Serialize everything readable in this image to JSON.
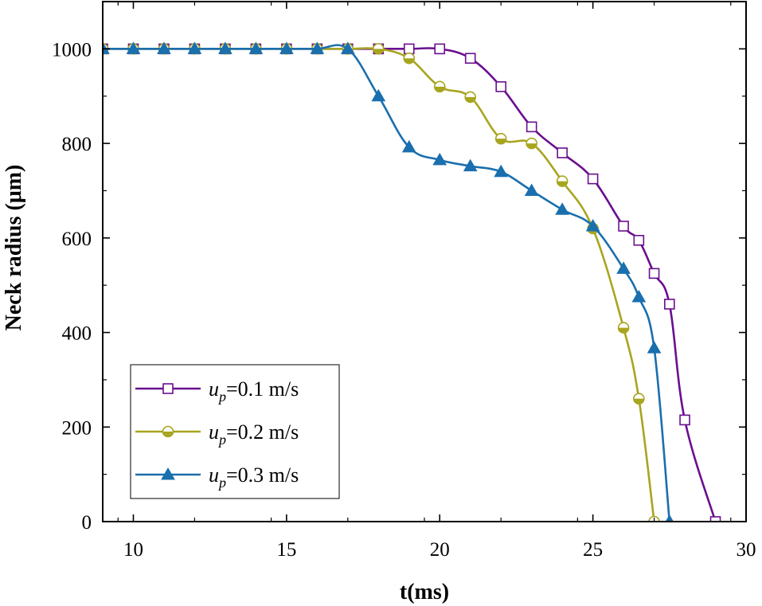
{
  "chart_data": {
    "type": "line",
    "xlabel": "t(ms)",
    "ylabel": "Neck radius (μm)",
    "xlim": [
      9,
      30
    ],
    "ylim": [
      0,
      1100
    ],
    "xticks": [
      10,
      15,
      20,
      25,
      30
    ],
    "yticks": [
      0,
      200,
      400,
      600,
      800,
      1000
    ],
    "grid": false,
    "legend_position": "bottom-left",
    "series": [
      {
        "var": "u",
        "sub": "p",
        "value_text": "=0.1 m/s",
        "color": "#6a0f8e",
        "marker": "open-square",
        "x": [
          9,
          10,
          11,
          12,
          13,
          14,
          15,
          16,
          17,
          18,
          19,
          20,
          21,
          22,
          23,
          24,
          25,
          26,
          26.5,
          27,
          27.5,
          28,
          29
        ],
        "y": [
          1000,
          1000,
          1000,
          1000,
          1000,
          1000,
          1000,
          1000,
          1000,
          1000,
          1000,
          1000,
          980,
          920,
          835,
          780,
          725,
          625,
          595,
          525,
          460,
          215,
          0
        ]
      },
      {
        "var": "u",
        "sub": "p",
        "value_text": "=0.2 m/s",
        "color": "#a8a51f",
        "marker": "half-filled-circle",
        "x": [
          9,
          10,
          11,
          12,
          13,
          14,
          15,
          16,
          17,
          18,
          19,
          20,
          21,
          22,
          23,
          24,
          25,
          26,
          26.5,
          27
        ],
        "y": [
          1000,
          1000,
          1000,
          1000,
          1000,
          1000,
          1000,
          1000,
          1000,
          1000,
          980,
          920,
          898,
          810,
          800,
          720,
          620,
          410,
          260,
          0
        ]
      },
      {
        "var": "u",
        "sub": "p",
        "value_text": "=0.3 m/s",
        "color": "#1a6fae",
        "marker": "filled-triangle",
        "x": [
          9,
          10,
          11,
          12,
          13,
          14,
          15,
          16,
          17,
          18,
          19,
          20,
          21,
          22,
          23,
          24,
          25,
          26,
          26.5,
          27,
          27.5
        ],
        "y": [
          1000,
          1000,
          1000,
          1000,
          1000,
          1000,
          1000,
          1000,
          1000,
          900,
          792,
          765,
          752,
          740,
          700,
          660,
          625,
          535,
          475,
          367,
          0
        ]
      }
    ]
  }
}
